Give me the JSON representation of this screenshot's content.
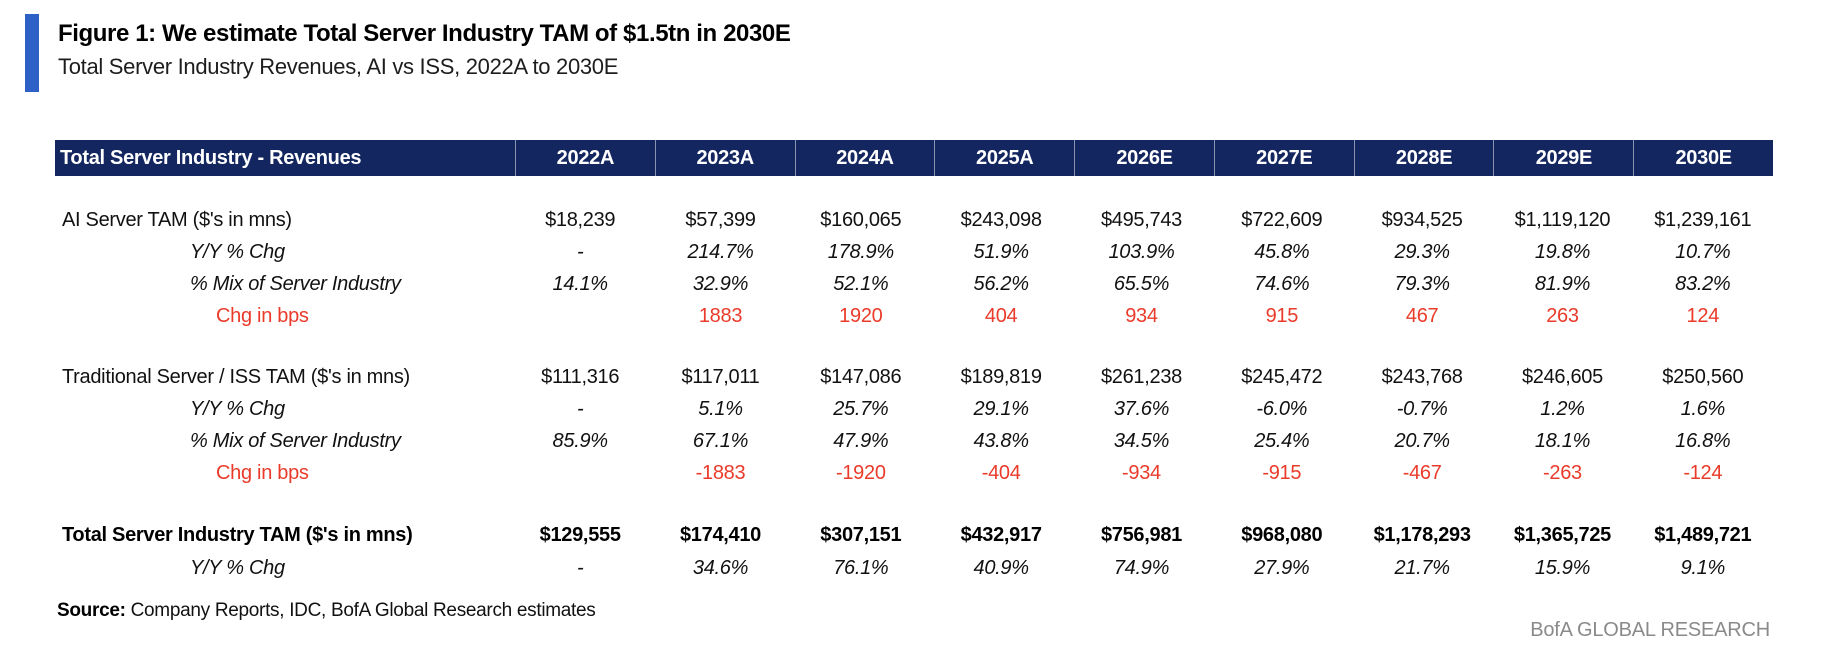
{
  "figure": {
    "title": "Figure 1: We estimate Total Server Industry TAM of $1.5tn in 2030E",
    "subtitle": "Total Server Industry Revenues, AI vs ISS, 2022A to 2030E",
    "source_label": "Source:",
    "source_text": " Company Reports, IDC, BofA Global Research estimates",
    "brand": "BofA GLOBAL RESEARCH"
  },
  "colors": {
    "header_bg": "#14265f",
    "accent_bar": "#2e61c6",
    "negative_red": "#ea3b2a",
    "brand_gray": "#8a8a8a"
  },
  "chart_data": {
    "type": "table",
    "header": [
      "Total Server Industry - Revenues",
      "2022A",
      "2023A",
      "2024A",
      "2025A",
      "2026E",
      "2027E",
      "2028E",
      "2029E",
      "2030E"
    ],
    "rows": [
      {
        "label": "AI Server TAM ($'s in mns)",
        "style": "main",
        "values": [
          "$18,239",
          "$57,399",
          "$160,065",
          "$243,098",
          "$495,743",
          "$722,609",
          "$934,525",
          "$1,119,120",
          "$1,239,161"
        ]
      },
      {
        "label": "Y/Y % Chg",
        "style": "italic",
        "values": [
          "-",
          "214.7%",
          "178.9%",
          "51.9%",
          "103.9%",
          "45.8%",
          "29.3%",
          "19.8%",
          "10.7%"
        ]
      },
      {
        "label": "% Mix of Server Industry",
        "style": "italic",
        "values": [
          "14.1%",
          "32.9%",
          "52.1%",
          "56.2%",
          "65.5%",
          "74.6%",
          "79.3%",
          "81.9%",
          "83.2%"
        ]
      },
      {
        "label": "Chg in bps",
        "style": "red",
        "values": [
          "",
          "1883",
          "1920",
          "404",
          "934",
          "915",
          "467",
          "263",
          "124"
        ]
      },
      {
        "label": "",
        "style": "spacer",
        "values": []
      },
      {
        "label": "Traditional Server / ISS TAM ($'s in mns)",
        "style": "main",
        "values": [
          "$111,316",
          "$117,011",
          "$147,086",
          "$189,819",
          "$261,238",
          "$245,472",
          "$243,768",
          "$246,605",
          "$250,560"
        ]
      },
      {
        "label": "Y/Y % Chg",
        "style": "italic",
        "values": [
          "-",
          "5.1%",
          "25.7%",
          "29.1%",
          "37.6%",
          "-6.0%",
          "-0.7%",
          "1.2%",
          "1.6%"
        ]
      },
      {
        "label": "% Mix of Server Industry",
        "style": "italic",
        "values": [
          "85.9%",
          "67.1%",
          "47.9%",
          "43.8%",
          "34.5%",
          "25.4%",
          "20.7%",
          "18.1%",
          "16.8%"
        ]
      },
      {
        "label": "Chg in bps",
        "style": "red",
        "values": [
          "",
          "-1883",
          "-1920",
          "-404",
          "-934",
          "-915",
          "-467",
          "-263",
          "-124"
        ]
      },
      {
        "label": "",
        "style": "spacer",
        "values": []
      },
      {
        "label": "Total Server Industry TAM ($'s in mns)",
        "style": "bold",
        "values": [
          "$129,555",
          "$174,410",
          "$307,151",
          "$432,917",
          "$756,981",
          "$968,080",
          "$1,178,293",
          "$1,365,725",
          "$1,489,721"
        ]
      },
      {
        "label": "Y/Y % Chg",
        "style": "italic",
        "values": [
          "-",
          "34.6%",
          "76.1%",
          "40.9%",
          "74.9%",
          "27.9%",
          "21.7%",
          "15.9%",
          "9.1%"
        ]
      }
    ]
  }
}
